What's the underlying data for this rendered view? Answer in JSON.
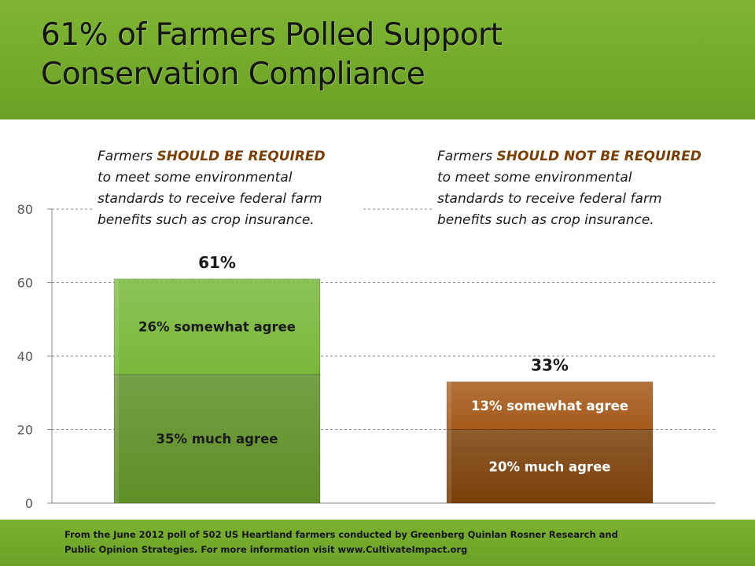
{
  "header": {
    "title_line1": "61% of Farmers Polled Support",
    "title_line2": "Conservation Compliance"
  },
  "annotations": {
    "required": {
      "emphasis": "SHOULD BE REQUIRED",
      "prefix": "Farmers ",
      "lines": [
        "to meet some environmental",
        "standards to receive federal farm",
        "benefits such as crop insurance."
      ]
    },
    "not_required": {
      "emphasis": "SHOULD NOT BE REQUIRED",
      "prefix": "Farmers ",
      "lines": [
        "to meet some environmental",
        "standards to receive federal farm",
        "benefits such as crop insurance."
      ]
    }
  },
  "footer": {
    "line1": "From the June 2012 poll of 502 US Heartland farmers conducted by Greenberg Quinlan Rosner  Research and",
    "line2": "Public Opinion Strategies. For more information visit www.CultivateImpact.org"
  },
  "chart_data": {
    "type": "bar",
    "stacked": true,
    "title": "61% of Farmers Polled Support Conservation Compliance",
    "ylim": [
      0,
      80
    ],
    "yticks": [
      0,
      20,
      40,
      60,
      80
    ],
    "grid": true,
    "bars": [
      {
        "total": 61,
        "total_label": "61%",
        "segments": [
          {
            "value": 35,
            "label": "35%  much agree",
            "color": "#5e8f26",
            "text_color": "#1a1a1a"
          },
          {
            "value": 26,
            "label": "26% somewhat agree",
            "color": "#78b83a",
            "text_color": "#1a1a1a"
          }
        ]
      },
      {
        "total": 33,
        "total_label": "33%",
        "segments": [
          {
            "value": 20,
            "label": "20% much agree",
            "color": "#7a3f08",
            "text_color": "#ffffff"
          },
          {
            "value": 13,
            "label": "13% somewhat agree",
            "color": "#a5591a",
            "text_color": "#ffffff"
          }
        ]
      }
    ]
  }
}
